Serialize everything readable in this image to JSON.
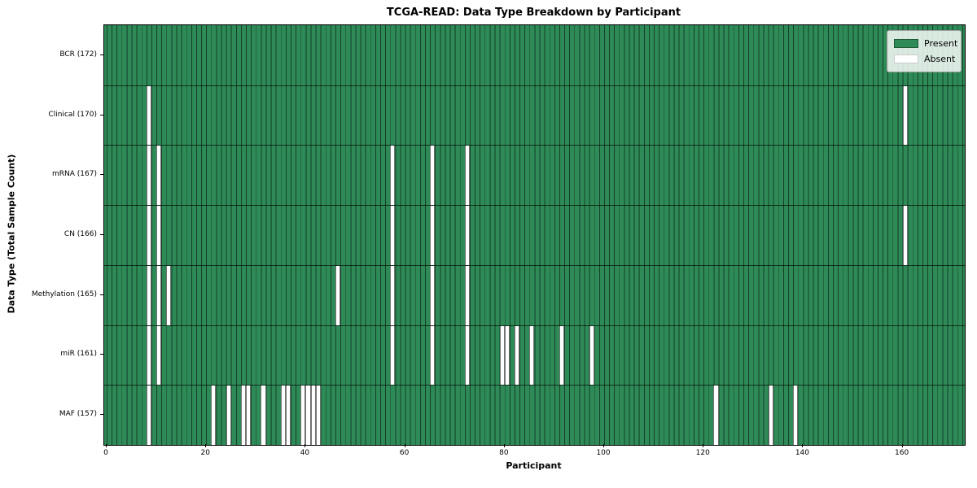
{
  "title": "TCGA-READ: Data Type Breakdown by Participant",
  "xlabel": "Participant",
  "ylabel": "Data Type (Total Sample Count)",
  "legend": {
    "present_label": "Present",
    "absent_label": "Absent"
  },
  "colors": {
    "present": "#2e8b57",
    "absent": "#ffffff",
    "grid_line": "rgba(0,0,0,0.55)",
    "row_line": "rgba(0,0,0,0.65)",
    "plot_border": "#000000"
  },
  "chart_data": {
    "type": "heatmap",
    "title": "TCGA-READ: Data Type Breakdown by Participant",
    "xlabel": "Participant",
    "ylabel": "Data Type (Total Sample Count)",
    "x_range": [
      0,
      172
    ],
    "n_participants": 172,
    "x_ticks": [
      0,
      20,
      40,
      60,
      80,
      100,
      120,
      140,
      160
    ],
    "grid": "per-participant vertical cell edges",
    "legend_position": "upper right",
    "legend_entries": [
      "Present",
      "Absent"
    ],
    "rows": [
      {
        "label": "BCR (172)",
        "data_type": "BCR",
        "total_sample_count": 172,
        "absent_participants": []
      },
      {
        "label": "Clinical (170)",
        "data_type": "Clinical",
        "total_sample_count": 170,
        "absent_participants": [
          8,
          160
        ]
      },
      {
        "label": "mRNA (167)",
        "data_type": "mRNA",
        "total_sample_count": 167,
        "absent_participants": [
          8,
          10,
          57,
          65,
          72
        ]
      },
      {
        "label": "CN (166)",
        "data_type": "CN",
        "total_sample_count": 166,
        "absent_participants": [
          8,
          10,
          57,
          65,
          72,
          160
        ]
      },
      {
        "label": "Methylation (165)",
        "data_type": "Methylation",
        "total_sample_count": 165,
        "absent_participants": [
          8,
          10,
          12,
          46,
          57,
          65,
          72
        ]
      },
      {
        "label": "miR (161)",
        "data_type": "miR",
        "total_sample_count": 161,
        "absent_participants": [
          8,
          10,
          57,
          65,
          72,
          79,
          80,
          82,
          85,
          91,
          97
        ]
      },
      {
        "label": "MAF (157)",
        "data_type": "MAF",
        "total_sample_count": 157,
        "absent_participants": [
          8,
          21,
          24,
          27,
          28,
          31,
          35,
          36,
          39,
          40,
          41,
          42,
          122,
          133,
          138
        ]
      }
    ]
  }
}
